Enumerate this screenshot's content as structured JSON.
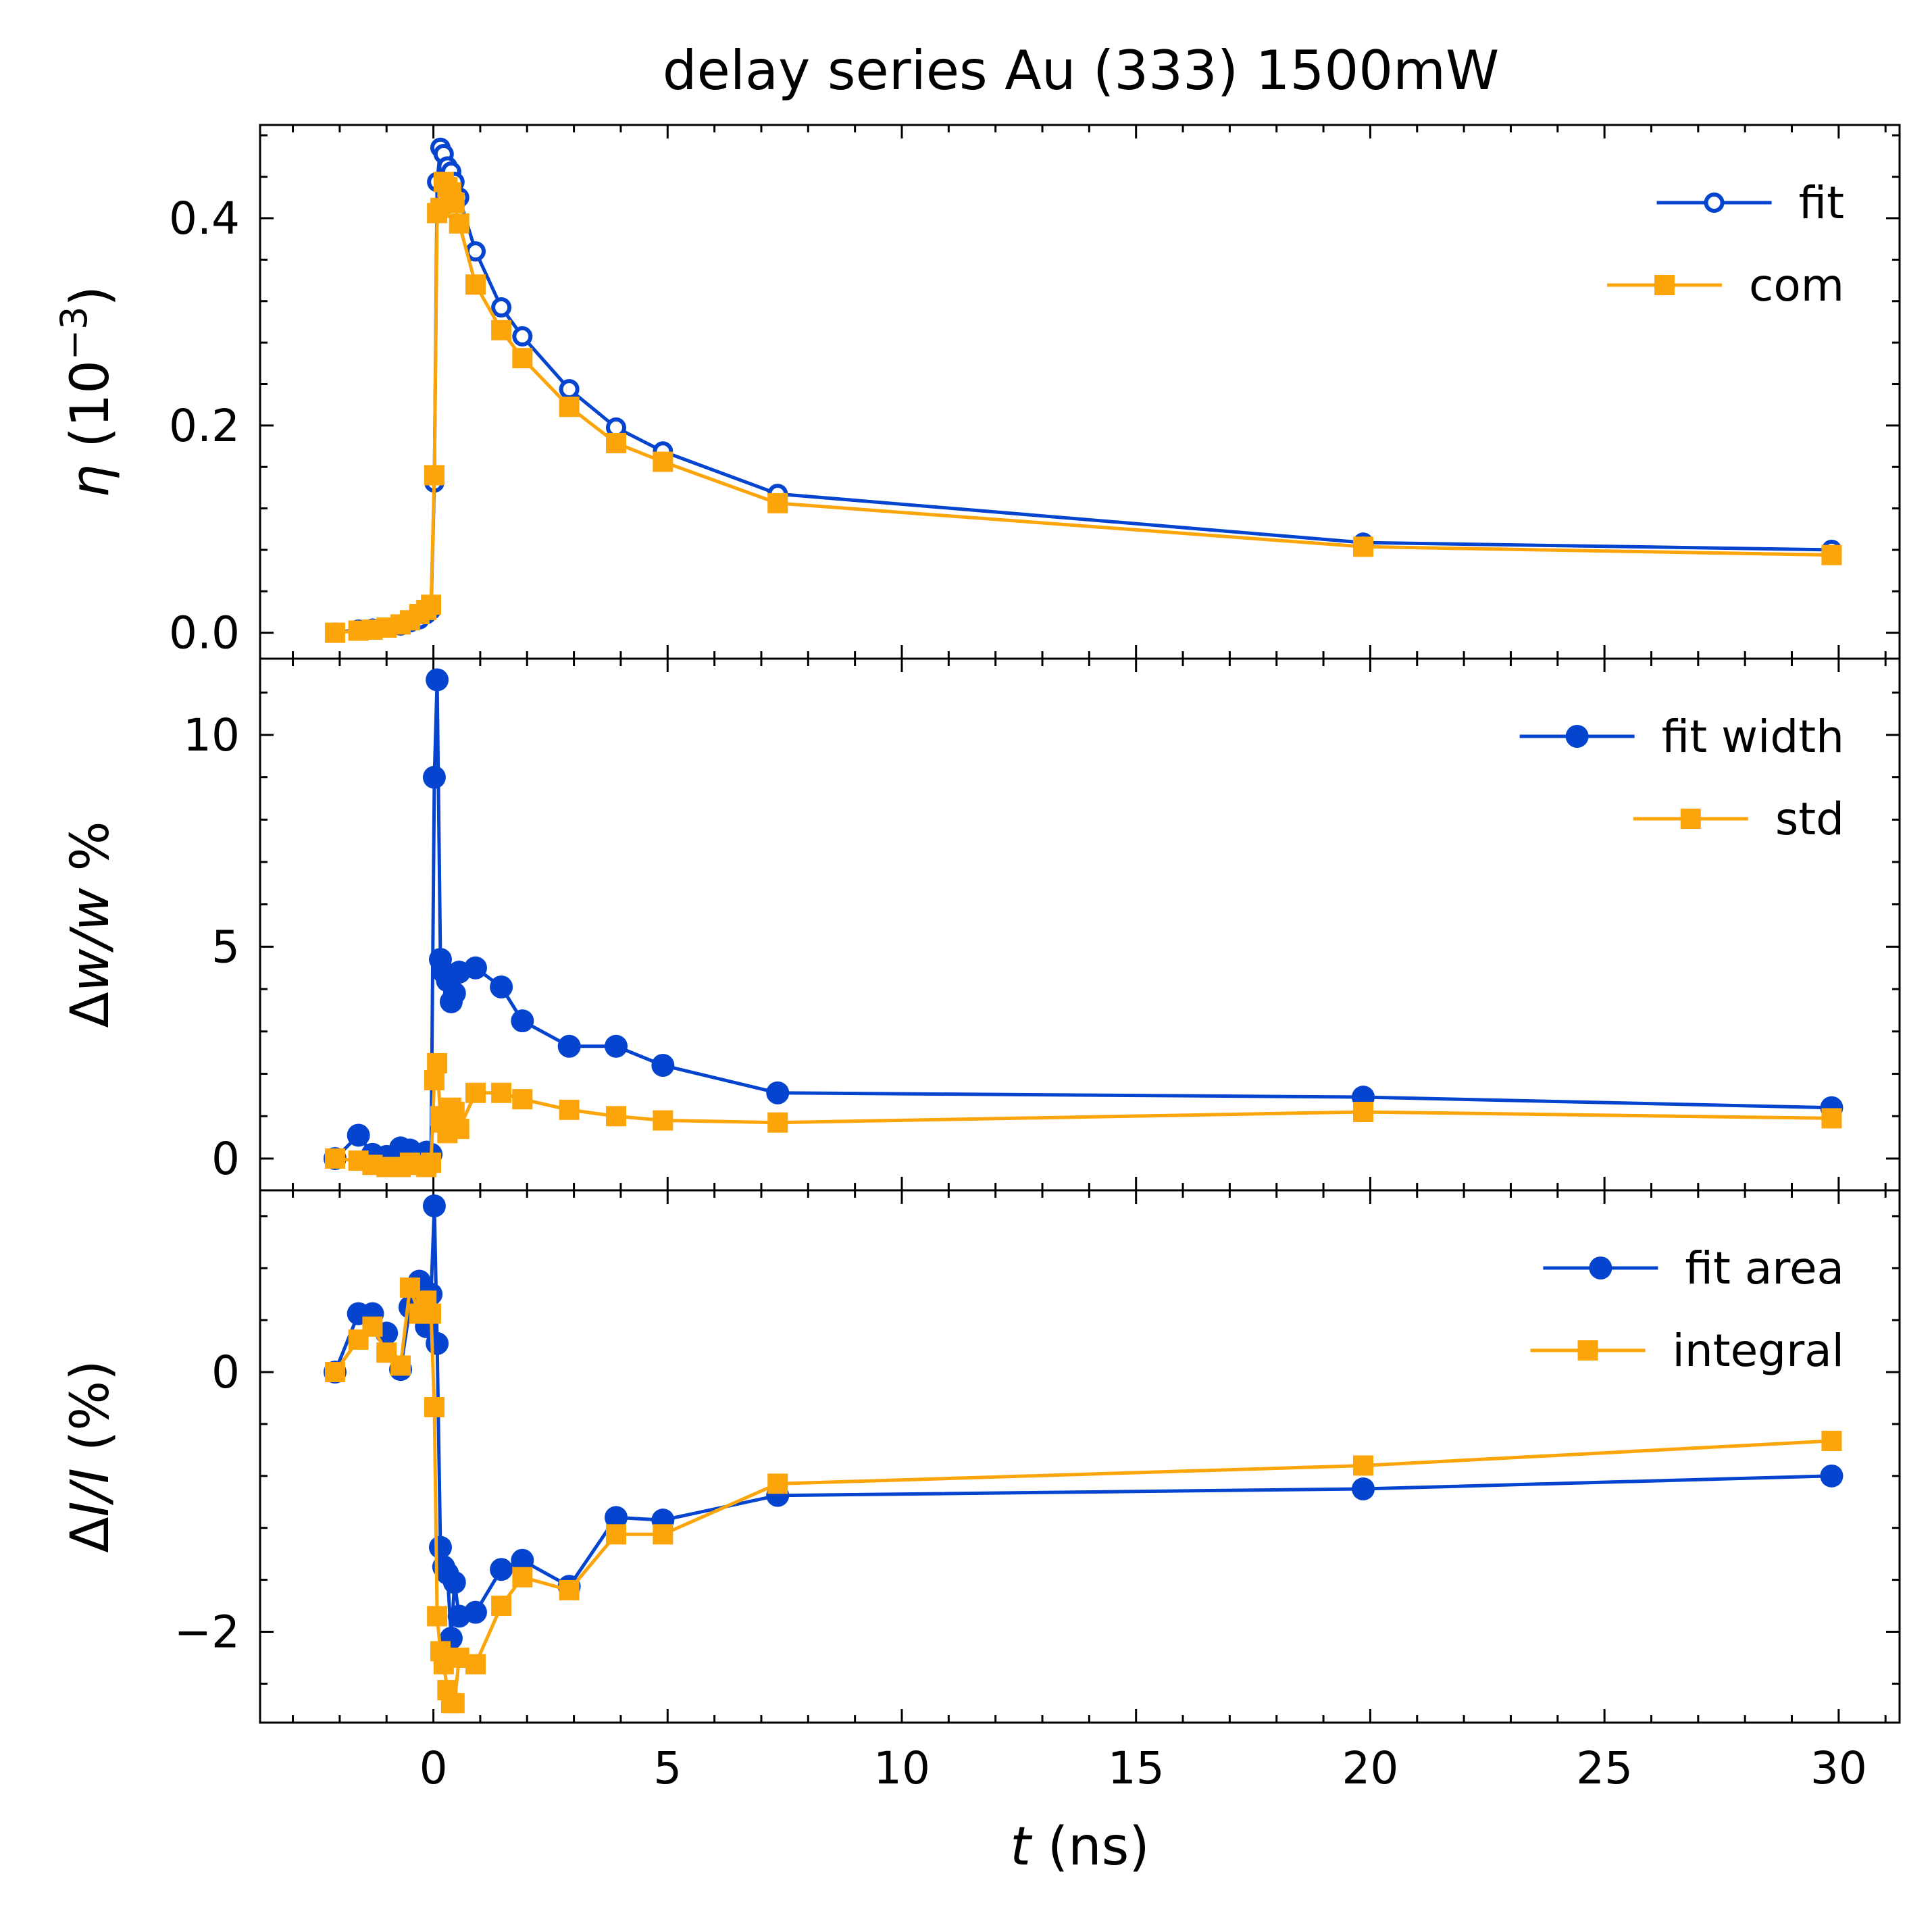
{
  "chart_data": {
    "type": "line",
    "title": "delay series Au (333) 1500mW",
    "xlabel": {
      "symbol": "t",
      "unit": "(ns)"
    },
    "xlim": [
      -3.7,
      31.3
    ],
    "xticks": [
      0,
      5,
      10,
      15,
      20,
      25,
      30
    ],
    "colors": {
      "blue": "#0444cf",
      "orange": "#fba50b"
    },
    "panels": [
      {
        "id": "eta",
        "ylabel": {
          "symbol": "η",
          "rest": " (10",
          "sup": "−3",
          "close": ")"
        },
        "ylim": [
          -0.025,
          0.49
        ],
        "yticks": [
          0.0,
          0.2,
          0.4
        ],
        "yticklabels": [
          "0.0",
          "0.2",
          "0.4"
        ],
        "series": [
          {
            "name": "fit",
            "color": "#0444cf",
            "marker": "open-circle",
            "x": [
              -2.1,
              -1.6,
              -1.3,
              -1.0,
              -0.7,
              -0.5,
              -0.3,
              -0.15,
              -0.05,
              0.02,
              0.08,
              0.15,
              0.22,
              0.3,
              0.38,
              0.45,
              0.55,
              0.9,
              1.45,
              1.9,
              2.9,
              3.9,
              4.9,
              7.35,
              19.85,
              29.85
            ],
            "y": [
              0.0,
              0.003,
              0.004,
              0.005,
              0.007,
              0.01,
              0.013,
              0.018,
              0.022,
              0.145,
              0.435,
              0.468,
              0.462,
              0.45,
              0.445,
              0.435,
              0.42,
              0.368,
              0.314,
              0.286,
              0.235,
              0.198,
              0.175,
              0.134,
              0.087,
              0.08
            ]
          },
          {
            "name": "com",
            "color": "#fba50b",
            "marker": "square",
            "x": [
              -2.1,
              -1.6,
              -1.3,
              -1.0,
              -0.7,
              -0.5,
              -0.3,
              -0.15,
              -0.05,
              0.02,
              0.08,
              0.15,
              0.22,
              0.3,
              0.38,
              0.45,
              0.55,
              0.9,
              1.45,
              1.9,
              2.9,
              3.9,
              4.9,
              7.35,
              19.85,
              29.85
            ],
            "y": [
              0.0,
              0.002,
              0.003,
              0.005,
              0.008,
              0.012,
              0.018,
              0.022,
              0.027,
              0.152,
              0.405,
              0.41,
              0.435,
              0.43,
              0.425,
              0.415,
              0.395,
              0.336,
              0.292,
              0.265,
              0.218,
              0.183,
              0.165,
              0.125,
              0.083,
              0.075
            ]
          }
        ]
      },
      {
        "id": "width",
        "ylabel": {
          "prefix": "Δ",
          "symbol": "w/w",
          "rest": " %"
        },
        "ylim": [
          -0.75,
          11.8
        ],
        "yticks": [
          0,
          5,
          10
        ],
        "yticklabels": [
          "0",
          "5",
          "10"
        ],
        "series": [
          {
            "name": "fit width",
            "color": "#0444cf",
            "marker": "circle",
            "x": [
              -2.1,
              -1.6,
              -1.3,
              -1.0,
              -0.7,
              -0.5,
              -0.3,
              -0.15,
              -0.05,
              0.02,
              0.08,
              0.15,
              0.22,
              0.3,
              0.38,
              0.45,
              0.55,
              0.9,
              1.45,
              1.9,
              2.9,
              3.9,
              4.9,
              7.35,
              19.85,
              29.85
            ],
            "y": [
              0.0,
              0.55,
              0.1,
              0.05,
              0.25,
              0.2,
              0.05,
              0.15,
              0.1,
              9.0,
              11.3,
              4.7,
              4.4,
              4.2,
              3.7,
              3.9,
              4.4,
              4.5,
              4.05,
              3.25,
              2.65,
              2.65,
              2.2,
              1.55,
              1.45,
              1.2
            ]
          },
          {
            "name": "std",
            "color": "#fba50b",
            "marker": "square",
            "x": [
              -2.1,
              -1.6,
              -1.3,
              -1.0,
              -0.7,
              -0.5,
              -0.3,
              -0.15,
              -0.05,
              0.02,
              0.08,
              0.15,
              0.22,
              0.3,
              0.38,
              0.45,
              0.55,
              0.9,
              1.45,
              1.9,
              2.9,
              3.9,
              4.9,
              7.35,
              19.85,
              29.85
            ],
            "y": [
              0.0,
              -0.05,
              -0.15,
              -0.2,
              -0.2,
              -0.1,
              -0.15,
              -0.2,
              -0.1,
              1.85,
              2.25,
              1.0,
              0.85,
              0.6,
              1.2,
              1.1,
              0.7,
              1.55,
              1.55,
              1.4,
              1.15,
              1.0,
              0.9,
              0.85,
              1.1,
              0.95
            ]
          }
        ]
      },
      {
        "id": "intensity",
        "ylabel": {
          "prefix": "Δ",
          "symbol": "I/I",
          "rest": " (%)"
        },
        "ylim": [
          -2.7,
          1.4
        ],
        "yticks": [
          -2,
          0
        ],
        "yticklabels": [
          "−2",
          "0"
        ],
        "series": [
          {
            "name": "fit area",
            "color": "#0444cf",
            "marker": "circle",
            "x": [
              -2.1,
              -1.6,
              -1.3,
              -1.0,
              -0.7,
              -0.5,
              -0.3,
              -0.15,
              -0.05,
              0.02,
              0.08,
              0.15,
              0.22,
              0.3,
              0.38,
              0.45,
              0.55,
              0.9,
              1.45,
              1.9,
              2.9,
              3.9,
              4.9,
              7.35,
              19.85,
              29.85
            ],
            "y": [
              0.0,
              0.45,
              0.45,
              0.3,
              0.02,
              0.5,
              0.7,
              0.35,
              0.6,
              1.28,
              0.22,
              -1.35,
              -1.5,
              -1.55,
              -2.05,
              -1.62,
              -1.88,
              -1.85,
              -1.52,
              -1.45,
              -1.65,
              -1.12,
              -1.14,
              -0.95,
              -0.9,
              -0.8
            ]
          },
          {
            "name": "integral",
            "color": "#fba50b",
            "marker": "square",
            "x": [
              -2.1,
              -1.6,
              -1.3,
              -1.0,
              -0.7,
              -0.5,
              -0.3,
              -0.15,
              -0.05,
              0.02,
              0.08,
              0.15,
              0.22,
              0.3,
              0.38,
              0.45,
              0.55,
              0.9,
              1.45,
              1.9,
              2.9,
              3.9,
              4.9,
              7.35,
              19.85,
              29.85
            ],
            "y": [
              0.0,
              0.25,
              0.35,
              0.15,
              0.05,
              0.65,
              0.45,
              0.55,
              0.45,
              -0.27,
              -1.88,
              -2.15,
              -2.25,
              -2.45,
              -2.55,
              -2.55,
              -2.2,
              -2.25,
              -1.8,
              -1.58,
              -1.68,
              -1.25,
              -1.25,
              -0.86,
              -0.72,
              -0.53
            ]
          }
        ]
      }
    ]
  }
}
